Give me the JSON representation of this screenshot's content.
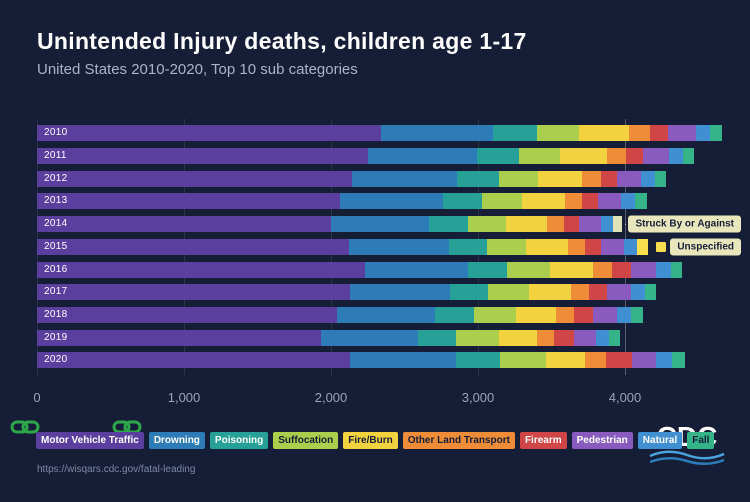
{
  "title": "Unintended Injury deaths, children age 1-17",
  "subtitle": "United States 2010-2020, Top 10 sub categories",
  "source_url": "https://wisqars.cdc.gov/fatal-leading",
  "logo": {
    "text": "CDC"
  },
  "chart_data": {
    "type": "bar",
    "stacked": true,
    "orientation": "horizontal",
    "title": "Unintended Injury deaths, children age 1-17",
    "subtitle": "United States 2010-2020, Top 10 sub categories",
    "xlabel": "",
    "ylabel": "",
    "xlim": [
      0,
      4500
    ],
    "xticks": [
      0,
      1000,
      2000,
      3000,
      4000
    ],
    "xtick_labels": [
      "0",
      "1,000",
      "2,000",
      "3,000",
      "4,000"
    ],
    "grid": "vertical-faint",
    "legend_position": "bottom",
    "categories": [
      {
        "name": "Motor Vehicle Traffic",
        "color": "#5b3f9e",
        "dark_text": false
      },
      {
        "name": "Drowning",
        "color": "#2d7cb8",
        "dark_text": false
      },
      {
        "name": "Poisoning",
        "color": "#27a197",
        "dark_text": false
      },
      {
        "name": "Suffocation",
        "color": "#a9cf4c",
        "dark_text": true
      },
      {
        "name": "Fire/Burn",
        "color": "#f3d23f",
        "dark_text": true
      },
      {
        "name": "Other Land Transport",
        "color": "#ee8c38",
        "dark_text": true
      },
      {
        "name": "Firearm",
        "color": "#d04545",
        "dark_text": false
      },
      {
        "name": "Pedestrian",
        "color": "#8a5bbf",
        "dark_text": false
      },
      {
        "name": "Natural",
        "color": "#3f8fd2",
        "dark_text": false
      },
      {
        "name": "Fall",
        "color": "#35b389",
        "dark_text": true
      }
    ],
    "extra_colors": {
      "Struck By or Against": "#dfe3b6",
      "Unspecified": "#f6de4f"
    },
    "rows": [
      {
        "year": "2010",
        "segments": [
          {
            "category": "Motor Vehicle Traffic",
            "value": 2340
          },
          {
            "category": "Drowning",
            "value": 760
          },
          {
            "category": "Poisoning",
            "value": 300
          },
          {
            "category": "Suffocation",
            "value": 290
          },
          {
            "category": "Fire/Burn",
            "value": 340
          },
          {
            "category": "Other Land Transport",
            "value": 140
          },
          {
            "category": "Firearm",
            "value": 120
          },
          {
            "category": "Pedestrian",
            "value": 190
          },
          {
            "category": "Natural",
            "value": 100
          },
          {
            "category": "Fall",
            "value": 80
          }
        ]
      },
      {
        "year": "2011",
        "segments": [
          {
            "category": "Motor Vehicle Traffic",
            "value": 2250
          },
          {
            "category": "Drowning",
            "value": 740
          },
          {
            "category": "Poisoning",
            "value": 290
          },
          {
            "category": "Suffocation",
            "value": 280
          },
          {
            "category": "Fire/Burn",
            "value": 320
          },
          {
            "category": "Other Land Transport",
            "value": 130
          },
          {
            "category": "Firearm",
            "value": 115
          },
          {
            "category": "Pedestrian",
            "value": 175
          },
          {
            "category": "Natural",
            "value": 95
          },
          {
            "category": "Fall",
            "value": 75
          }
        ]
      },
      {
        "year": "2012",
        "segments": [
          {
            "category": "Motor Vehicle Traffic",
            "value": 2140
          },
          {
            "category": "Drowning",
            "value": 720
          },
          {
            "category": "Poisoning",
            "value": 280
          },
          {
            "category": "Suffocation",
            "value": 270
          },
          {
            "category": "Fire/Burn",
            "value": 300
          },
          {
            "category": "Other Land Transport",
            "value": 125
          },
          {
            "category": "Firearm",
            "value": 110
          },
          {
            "category": "Pedestrian",
            "value": 165
          },
          {
            "category": "Natural",
            "value": 95
          },
          {
            "category": "Fall",
            "value": 75
          }
        ]
      },
      {
        "year": "2013",
        "segments": [
          {
            "category": "Motor Vehicle Traffic",
            "value": 2060
          },
          {
            "category": "Drowning",
            "value": 700
          },
          {
            "category": "Poisoning",
            "value": 270
          },
          {
            "category": "Suffocation",
            "value": 270
          },
          {
            "category": "Fire/Burn",
            "value": 290
          },
          {
            "category": "Other Land Transport",
            "value": 120
          },
          {
            "category": "Firearm",
            "value": 105
          },
          {
            "category": "Pedestrian",
            "value": 160
          },
          {
            "category": "Natural",
            "value": 95
          },
          {
            "category": "Fall",
            "value": 80
          }
        ]
      },
      {
        "year": "2014",
        "segments": [
          {
            "category": "Motor Vehicle Traffic",
            "value": 2000
          },
          {
            "category": "Drowning",
            "value": 670
          },
          {
            "category": "Poisoning",
            "value": 260
          },
          {
            "category": "Suffocation",
            "value": 260
          },
          {
            "category": "Fire/Burn",
            "value": 280
          },
          {
            "category": "Other Land Transport",
            "value": 115
          },
          {
            "category": "Firearm",
            "value": 100
          },
          {
            "category": "Pedestrian",
            "value": 150
          },
          {
            "category": "Natural",
            "value": 85
          },
          {
            "category": "Struck By or Against",
            "value": 60
          }
        ]
      },
      {
        "year": "2015",
        "segments": [
          {
            "category": "Motor Vehicle Traffic",
            "value": 2120
          },
          {
            "category": "Drowning",
            "value": 680
          },
          {
            "category": "Poisoning",
            "value": 260
          },
          {
            "category": "Suffocation",
            "value": 270
          },
          {
            "category": "Fire/Burn",
            "value": 280
          },
          {
            "category": "Other Land Transport",
            "value": 120
          },
          {
            "category": "Firearm",
            "value": 110
          },
          {
            "category": "Pedestrian",
            "value": 155
          },
          {
            "category": "Natural",
            "value": 90
          },
          {
            "category": "Unspecified",
            "value": 75
          }
        ]
      },
      {
        "year": "2016",
        "segments": [
          {
            "category": "Motor Vehicle Traffic",
            "value": 2230
          },
          {
            "category": "Drowning",
            "value": 700
          },
          {
            "category": "Poisoning",
            "value": 270
          },
          {
            "category": "Suffocation",
            "value": 290
          },
          {
            "category": "Fire/Burn",
            "value": 290
          },
          {
            "category": "Other Land Transport",
            "value": 130
          },
          {
            "category": "Firearm",
            "value": 130
          },
          {
            "category": "Pedestrian",
            "value": 170
          },
          {
            "category": "Natural",
            "value": 100
          },
          {
            "category": "Fall",
            "value": 80
          }
        ]
      },
      {
        "year": "2017",
        "segments": [
          {
            "category": "Motor Vehicle Traffic",
            "value": 2130
          },
          {
            "category": "Drowning",
            "value": 680
          },
          {
            "category": "Poisoning",
            "value": 260
          },
          {
            "category": "Suffocation",
            "value": 280
          },
          {
            "category": "Fire/Burn",
            "value": 280
          },
          {
            "category": "Other Land Transport",
            "value": 125
          },
          {
            "category": "Firearm",
            "value": 125
          },
          {
            "category": "Pedestrian",
            "value": 160
          },
          {
            "category": "Natural",
            "value": 95
          },
          {
            "category": "Fall",
            "value": 75
          }
        ]
      },
      {
        "year": "2018",
        "segments": [
          {
            "category": "Motor Vehicle Traffic",
            "value": 2040
          },
          {
            "category": "Drowning",
            "value": 670
          },
          {
            "category": "Poisoning",
            "value": 260
          },
          {
            "category": "Suffocation",
            "value": 290
          },
          {
            "category": "Fire/Burn",
            "value": 270
          },
          {
            "category": "Other Land Transport",
            "value": 125
          },
          {
            "category": "Firearm",
            "value": 130
          },
          {
            "category": "Pedestrian",
            "value": 160
          },
          {
            "category": "Natural",
            "value": 95
          },
          {
            "category": "Fall",
            "value": 80
          }
        ]
      },
      {
        "year": "2019",
        "segments": [
          {
            "category": "Motor Vehicle Traffic",
            "value": 1930
          },
          {
            "category": "Drowning",
            "value": 660
          },
          {
            "category": "Poisoning",
            "value": 260
          },
          {
            "category": "Suffocation",
            "value": 290
          },
          {
            "category": "Fire/Burn",
            "value": 260
          },
          {
            "category": "Other Land Transport",
            "value": 120
          },
          {
            "category": "Firearm",
            "value": 130
          },
          {
            "category": "Pedestrian",
            "value": 150
          },
          {
            "category": "Natural",
            "value": 90
          },
          {
            "category": "Fall",
            "value": 75
          }
        ]
      },
      {
        "year": "2020",
        "segments": [
          {
            "category": "Motor Vehicle Traffic",
            "value": 2130
          },
          {
            "category": "Drowning",
            "value": 720
          },
          {
            "category": "Poisoning",
            "value": 300
          },
          {
            "category": "Suffocation",
            "value": 310
          },
          {
            "category": "Fire/Burn",
            "value": 270
          },
          {
            "category": "Other Land Transport",
            "value": 140
          },
          {
            "category": "Firearm",
            "value": 180
          },
          {
            "category": "Pedestrian",
            "value": 160
          },
          {
            "category": "Natural",
            "value": 110
          },
          {
            "category": "Fall",
            "value": 90
          }
        ]
      }
    ],
    "annotations": [
      {
        "label": "Struck By or Against",
        "target_year": "2014"
      },
      {
        "label": "Unspecified",
        "target_year": "2015",
        "swatch_color": "#f6de4f"
      }
    ]
  }
}
